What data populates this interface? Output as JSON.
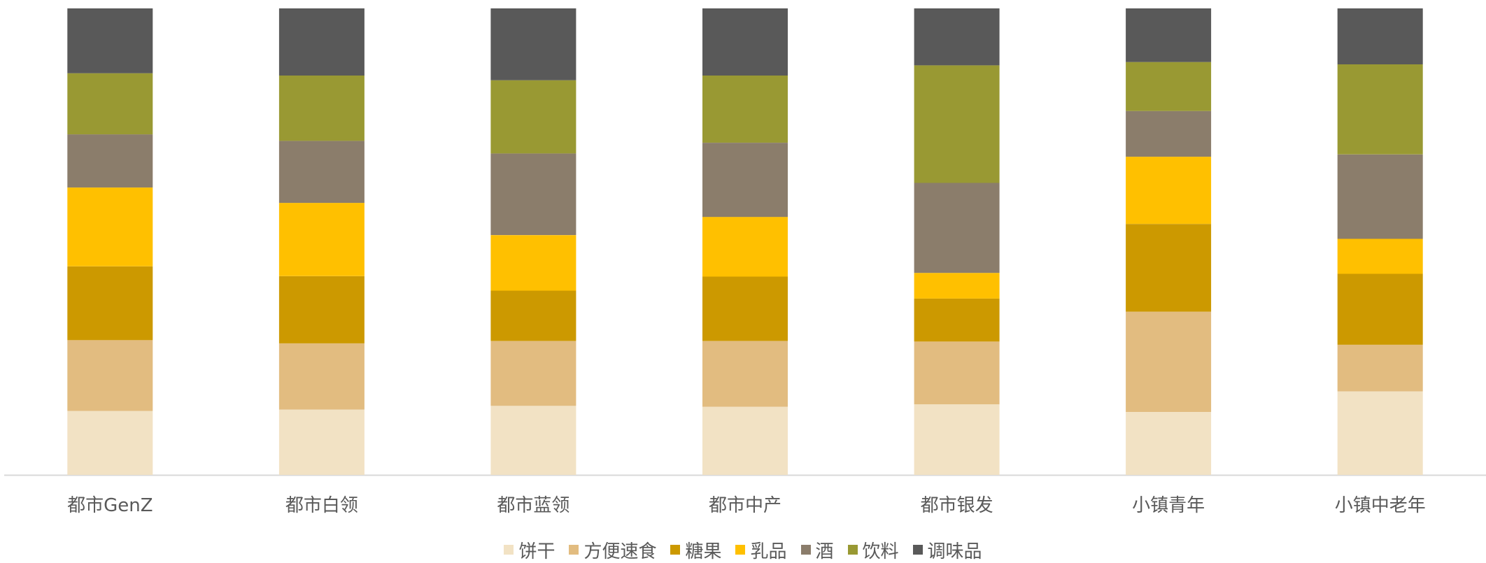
{
  "chart_data": {
    "type": "bar",
    "stacked": true,
    "normalized": true,
    "title": "",
    "xlabel": "",
    "ylabel": "",
    "ylim": [
      0,
      100
    ],
    "grid": false,
    "legend_position": "bottom",
    "categories": [
      "都市GenZ",
      "都市白领",
      "都市蓝领",
      "都市中产",
      "都市银发",
      "小镇青年",
      "小镇中老年"
    ],
    "series": [
      {
        "name": "饼干",
        "color": "#F2E2C4",
        "values": [
          13.7,
          14.0,
          14.8,
          14.6,
          15.1,
          13.5,
          17.9
        ]
      },
      {
        "name": "方便速食",
        "color": "#E2BC80",
        "values": [
          15.2,
          14.2,
          13.9,
          14.1,
          13.5,
          21.5,
          10.0
        ]
      },
      {
        "name": "糖果",
        "color": "#CC9900",
        "values": [
          15.8,
          14.4,
          10.8,
          13.8,
          9.2,
          18.8,
          15.2
        ]
      },
      {
        "name": "乳品",
        "color": "#FFC000",
        "values": [
          16.9,
          15.7,
          11.9,
          12.8,
          5.5,
          14.4,
          7.5
        ]
      },
      {
        "name": "酒",
        "color": "#8B7D6B",
        "values": [
          11.4,
          13.3,
          17.5,
          15.9,
          19.3,
          9.8,
          18.1
        ]
      },
      {
        "name": "饮料",
        "color": "#999933",
        "values": [
          13.1,
          14.0,
          15.7,
          14.4,
          25.2,
          10.5,
          19.3
        ]
      },
      {
        "name": "调味品",
        "color": "#595959",
        "values": [
          13.9,
          14.4,
          15.4,
          14.4,
          12.2,
          11.5,
          12.0
        ]
      }
    ]
  }
}
